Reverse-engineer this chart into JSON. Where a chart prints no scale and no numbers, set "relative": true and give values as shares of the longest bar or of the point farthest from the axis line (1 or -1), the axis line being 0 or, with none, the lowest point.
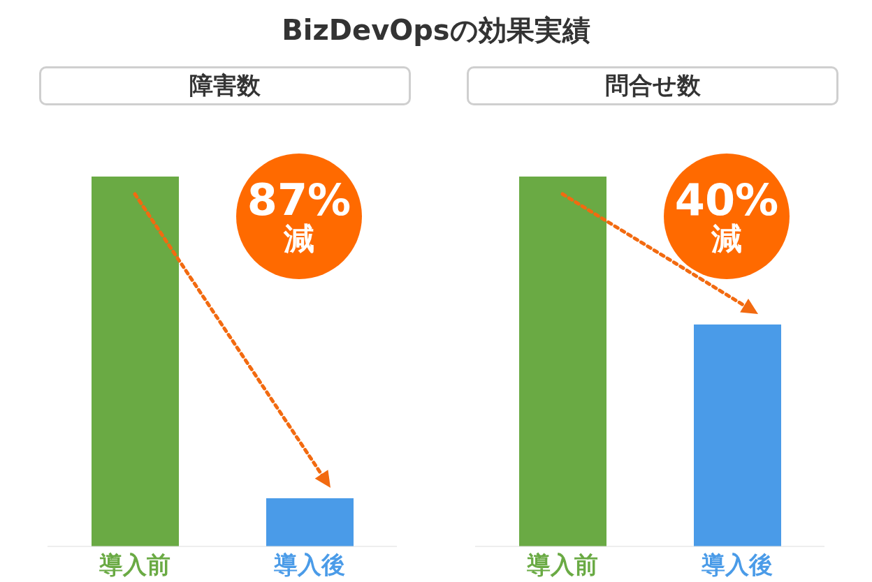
{
  "chart_data": [
    {
      "type": "bar",
      "title": "BizDevOpsの効果実績",
      "subtitle": "障害数",
      "categories": [
        "導入前",
        "導入後"
      ],
      "values": [
        1,
        0.13
      ],
      "colors": [
        "#6aaa44",
        "#4a9be8"
      ],
      "relative": true,
      "annotations": [
        "87%減"
      ],
      "grid": false,
      "legend": false
    },
    {
      "type": "bar",
      "title": "問合せ数",
      "categories": [
        "導入前",
        "導入後"
      ],
      "values": [
        1,
        0.6
      ],
      "colors": [
        "#6aaa44",
        "#4a9be8"
      ],
      "relative": true,
      "annotations": [
        "40%減"
      ],
      "grid": false,
      "legend": false
    }
  ]
}
